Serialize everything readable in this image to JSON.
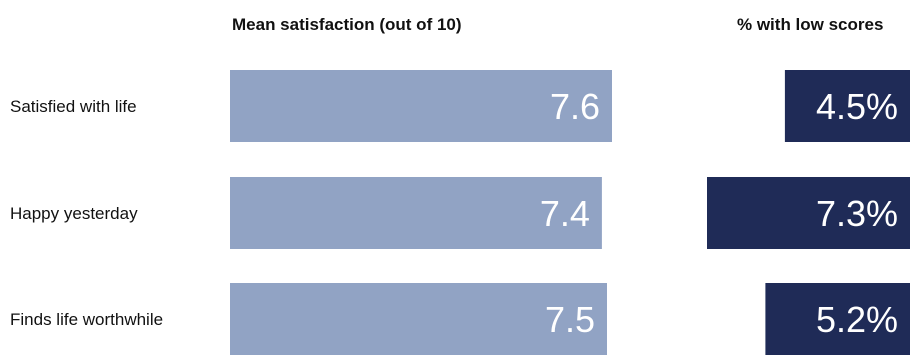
{
  "chart_data": {
    "type": "bar",
    "categories": [
      "Satisfied with life",
      "Happy yesterday",
      "Finds life worthwhile"
    ],
    "panels": [
      {
        "title": "Mean satisfaction (out of 10)",
        "values": [
          7.6,
          7.4,
          7.5
        ],
        "labels": [
          "7.6",
          "7.4",
          "7.5"
        ],
        "color": "#91a3c4",
        "xlim": [
          0,
          7.6
        ]
      },
      {
        "title": "% with low scores",
        "values": [
          4.5,
          7.3,
          5.2
        ],
        "labels": [
          "4.5%",
          "7.3%",
          "5.2%"
        ],
        "color": "#1f2b57",
        "xlim": [
          0,
          7.3
        ]
      }
    ]
  }
}
